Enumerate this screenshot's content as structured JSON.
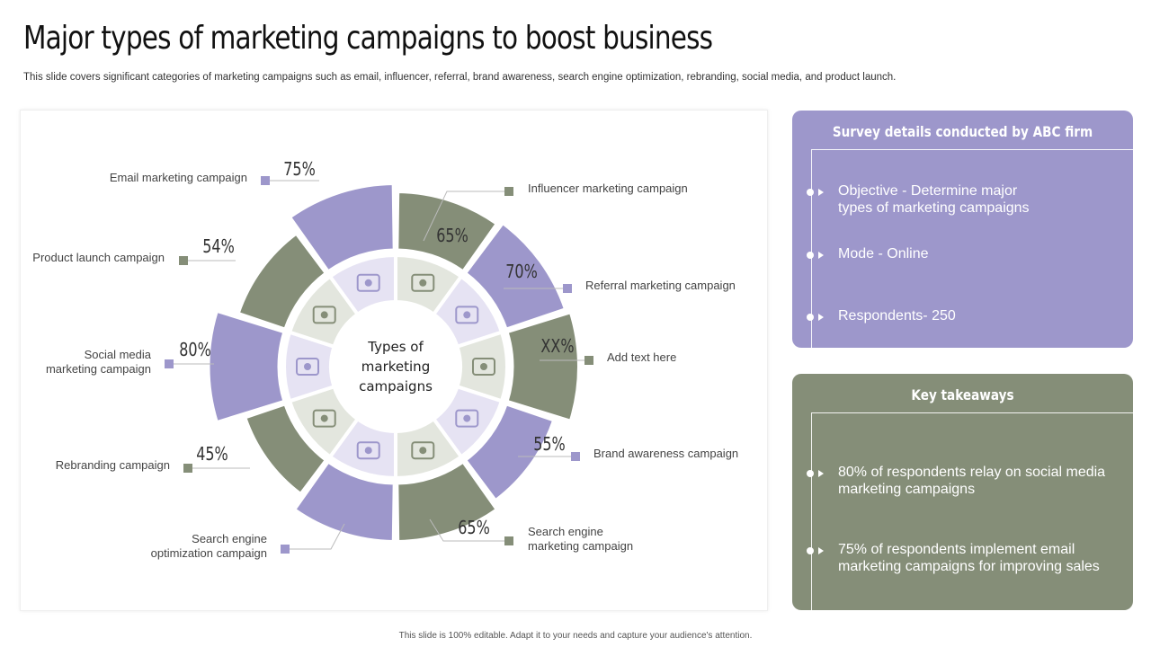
{
  "title": "Major types of marketing campaigns to boost business",
  "subtitle": "This slide covers significant categories of marketing campaigns such as email, influencer, referral, brand awareness, search engine optimization, rebranding, social media, and product launch.",
  "center_label": [
    "Types of",
    "marketing",
    "campaigns"
  ],
  "colors": {
    "purple": "#9d97cb",
    "green": "#858e78",
    "inner_purple": "#e6e3f3",
    "inner_green": "#e3e6de"
  },
  "segments": [
    {
      "label": "Influencer  marketing campaign",
      "value": "65%",
      "fraction": 0.65,
      "color": "green",
      "icon": "network-person-icon"
    },
    {
      "label": "Referral  marketing campaign",
      "value": "70%",
      "fraction": 0.7,
      "color": "purple",
      "icon": "people-share-icon"
    },
    {
      "label": "Add text here",
      "value": "XX%",
      "fraction": 0.75,
      "color": "green",
      "icon": "mobile-shop-icon"
    },
    {
      "label": "Brand awareness  campaign",
      "value": "55%",
      "fraction": 0.55,
      "color": "purple",
      "icon": "hand-briefcase-icon"
    },
    {
      "label": "Search engine marketing campaign",
      "value": "65%",
      "fraction": 0.65,
      "color": "green",
      "icon": "monitor-search-icon"
    },
    {
      "label": "Search engine optimization campaign",
      "value": "",
      "fraction": 0.65,
      "color": "purple",
      "icon": "search-documents-icon"
    },
    {
      "label": "Rebranding  campaign",
      "value": "45%",
      "fraction": 0.45,
      "color": "green",
      "icon": "hands-idea-icon"
    },
    {
      "label": "Social media marketing campaign",
      "value": "80%",
      "fraction": 0.8,
      "color": "purple",
      "icon": "megaphone-social-icon"
    },
    {
      "label": "Product launch campaign",
      "value": "54%",
      "fraction": 0.54,
      "color": "green",
      "icon": "presentation-icon"
    },
    {
      "label": "Email marketing campaign",
      "value": "75%",
      "fraction": 0.75,
      "color": "purple",
      "icon": "envelope-icon"
    }
  ],
  "survey": {
    "title": "Survey details conducted by ABC firm",
    "items": [
      "Objective - Determine major types of marketing campaigns",
      "Mode - Online",
      "Respondents- 250"
    ]
  },
  "takeaways": {
    "title": "Key takeaways",
    "items": [
      "80% of respondents relay on social media marketing campaigns",
      "75% of respondents implement email marketing campaigns for improving sales"
    ]
  },
  "footer": "This slide is 100% editable.  Adapt it to your needs and capture your audience's attention."
}
